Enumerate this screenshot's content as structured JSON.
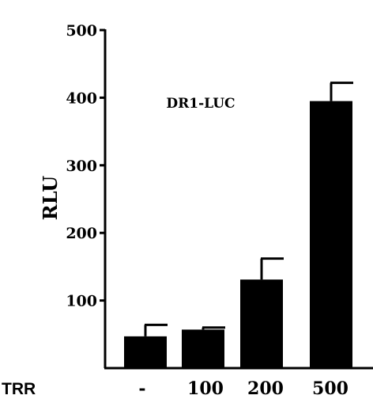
{
  "chart_data": {
    "type": "bar",
    "title": "",
    "annotation": "DR1-LUC",
    "ylabel": "RLU",
    "xlabel": "",
    "x_row_label": "TRR",
    "categories": [
      "-",
      "100",
      "200",
      "500"
    ],
    "values": [
      47,
      57,
      131,
      395
    ],
    "errors": [
      17,
      3,
      31,
      27
    ],
    "ylim": [
      0,
      500
    ],
    "yticks": [
      100,
      200,
      300,
      400,
      500
    ],
    "grid": false,
    "legend": "none",
    "bar_color": "#000000"
  }
}
